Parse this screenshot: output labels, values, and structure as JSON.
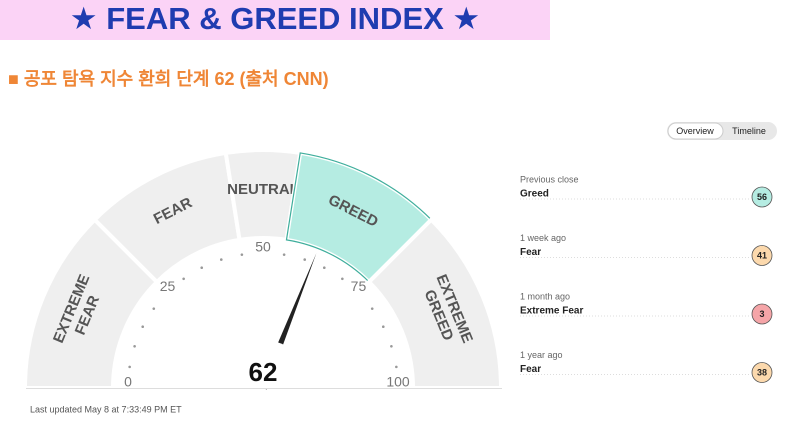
{
  "header": {
    "title": "★ FEAR & GREED INDEX ★",
    "subtitle": "■ 공포 탐욕 지수 환희 단계 62 (출처 CNN)"
  },
  "chart_data": {
    "type": "gauge",
    "value": 62,
    "range": [
      0,
      100
    ],
    "ticks": [
      0,
      25,
      50,
      75,
      100
    ],
    "bands": [
      {
        "lines": [
          "EXTREME",
          "FEAR"
        ],
        "from": 0,
        "to": 25
      },
      {
        "lines": [
          "FEAR"
        ],
        "from": 25,
        "to": 45
      },
      {
        "lines": [
          "NEUTRAL"
        ],
        "from": 45,
        "to": 55
      },
      {
        "lines": [
          "GREED"
        ],
        "from": 55,
        "to": 75
      },
      {
        "lines": [
          "EXTREME",
          "GREED"
        ],
        "from": 75,
        "to": 100
      }
    ],
    "band_color": "#efefef",
    "highlight_color": "#b5ece2",
    "updated": "Last updated May 8 at 7:33:49 PM ET"
  },
  "tabs": [
    "Overview",
    "Timeline"
  ],
  "history": [
    {
      "period": "Previous close",
      "rating": "Greed",
      "value": 56,
      "color": "#b5ece2"
    },
    {
      "period": "1 week ago",
      "rating": "Fear",
      "value": 41,
      "color": "#fcd9ad"
    },
    {
      "period": "1 month ago",
      "rating": "Extreme Fear",
      "value": 3,
      "color": "#f5a5a8"
    },
    {
      "period": "1 year ago",
      "rating": "Fear",
      "value": 38,
      "color": "#fcd9ad"
    }
  ]
}
